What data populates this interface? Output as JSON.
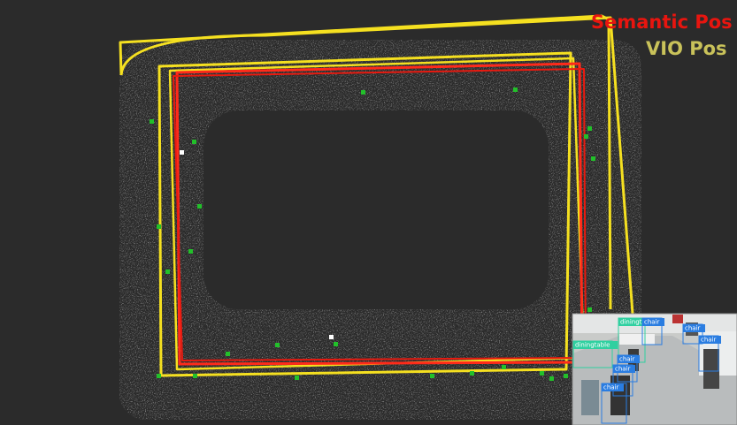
{
  "legend": {
    "semantic": "Semantic Pos",
    "vio": "VIO Pos"
  },
  "detections": [
    "diningtable",
    "chair",
    "chair",
    "chair",
    "diningtable",
    "chair",
    "chair",
    "chair"
  ]
}
